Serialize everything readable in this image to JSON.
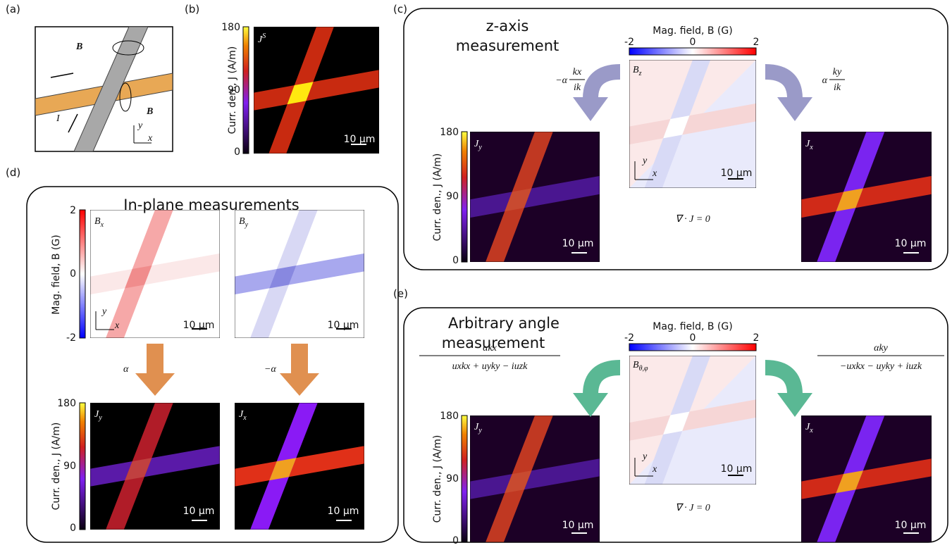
{
  "a": {
    "label": "(a)",
    "field_1": "B",
    "field_2": "B",
    "current": "I",
    "axis_y": "y",
    "axis_x": "x"
  },
  "b": {
    "label": "(b)",
    "colorbar_title": "Curr. den., J (A/m)",
    "colorbar_ticks": [
      "180",
      "90",
      "0"
    ],
    "image_symbol": "J",
    "image_superscript": "S",
    "scale_bar": "10 µm"
  },
  "c": {
    "label": "(c)",
    "title_lines": [
      "z-axis",
      "measurement"
    ],
    "field_colorbar": {
      "title": "Mag. field, B (G)",
      "ticks": [
        "-2",
        "0",
        "2"
      ]
    },
    "field_image": {
      "symbol": "B",
      "subscript": "z",
      "axis_y": "y",
      "axis_x": "x",
      "scale_bar": "10 µm"
    },
    "left_operator": {
      "prefix": "−α",
      "numerator": "kx",
      "denominator": "ik"
    },
    "right_operator": {
      "prefix": "α",
      "numerator": "ky",
      "denominator": "ik"
    },
    "current_colorbar": {
      "title": "Curr. den., J (A/m)",
      "ticks": [
        "180",
        "90",
        "0"
      ]
    },
    "left_image": {
      "symbol": "J",
      "subscript": "y",
      "scale_bar": "10 µm"
    },
    "right_image": {
      "symbol": "J",
      "subscript": "x",
      "scale_bar": "10 µm"
    },
    "constraint": "∇ · J = 0"
  },
  "d": {
    "label": "(d)",
    "title": "In-plane measurements",
    "field_colorbar": {
      "title": "Mag. field, B (G)",
      "ticks": [
        "2",
        "0",
        "-2"
      ]
    },
    "field_images": [
      {
        "symbol": "B",
        "subscript": "x",
        "axis_y": "y",
        "axis_x": "x",
        "scale_bar": "10 µm"
      },
      {
        "symbol": "B",
        "subscript": "y",
        "scale_bar": "10 µm"
      }
    ],
    "operators": [
      "α",
      "−α"
    ],
    "current_colorbar": {
      "title": "Curr. den., J (A/m)",
      "ticks": [
        "180",
        "90",
        "0"
      ]
    },
    "current_images": [
      {
        "symbol": "J",
        "subscript": "y",
        "scale_bar": "10 µm"
      },
      {
        "symbol": "J",
        "subscript": "x",
        "scale_bar": "10 µm"
      }
    ]
  },
  "e": {
    "label": "(e)",
    "title_lines": [
      "Arbitrary angle",
      "measurement"
    ],
    "field_colorbar": {
      "title": "Mag. field, B (G)",
      "ticks": [
        "-2",
        "0",
        "2"
      ]
    },
    "field_image": {
      "symbol": "B",
      "subscript": "θ,φ",
      "axis_y": "y",
      "axis_x": "x",
      "scale_bar": "10 µm"
    },
    "left_operator": {
      "numerator": "αkx",
      "denominator": "uxkx + uyky − iuzk"
    },
    "right_operator": {
      "numerator": "αky",
      "denominator": "−uxkx − uyky + iuzk"
    },
    "current_colorbar": {
      "title": "Curr. den., J (A/m)",
      "ticks": [
        "180",
        "90",
        "0"
      ]
    },
    "left_image": {
      "symbol": "J",
      "subscript": "y",
      "scale_bar": "10 µm"
    },
    "right_image": {
      "symbol": "J",
      "subscript": "x",
      "scale_bar": "10 µm"
    },
    "constraint": "∇ · J = 0"
  }
}
